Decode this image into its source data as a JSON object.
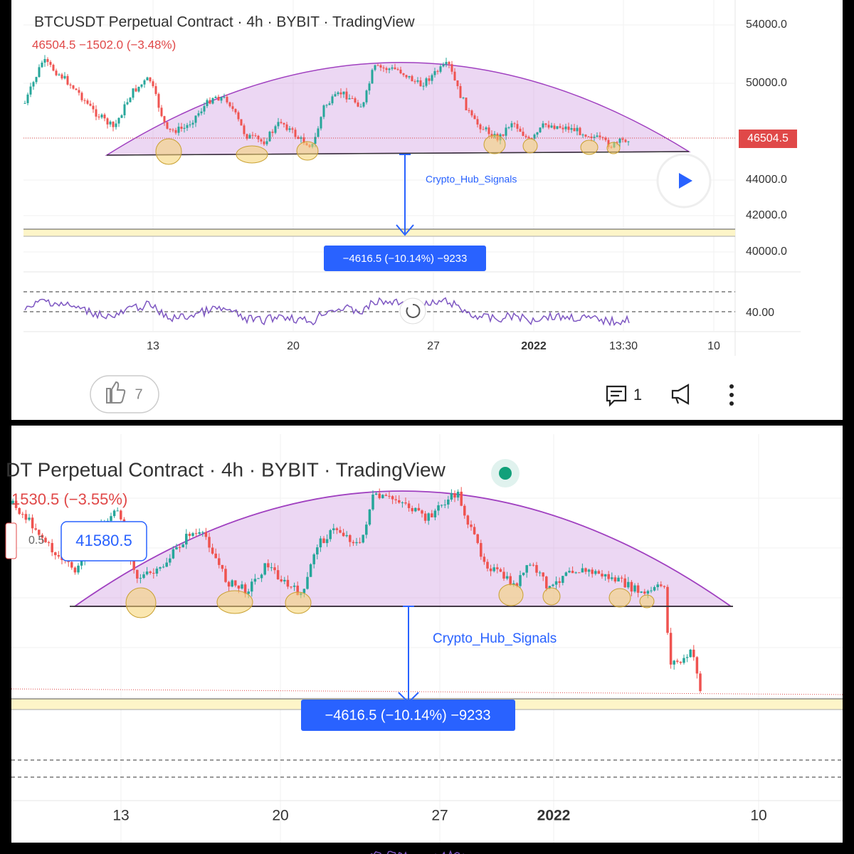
{
  "top": {
    "title": "BTCUSDT Perpetual Contract · 4h · BYBIT · TradingView",
    "price_line": "46504.5  −1502.0 (−3.48%)",
    "price_axis": [
      "54000.0",
      "50000.0",
      "44000.0",
      "42000.0",
      "40000.0"
    ],
    "last_price": "46504.5",
    "rsi_axis": "40.00",
    "time_axis": [
      "13",
      "20",
      "27",
      "2022",
      "13:30",
      "10"
    ],
    "watermark": "Crypto_Hub_Signals",
    "measure": "−4616.5 (−10.14%) −9233",
    "likes": "7",
    "comments": "1"
  },
  "bottom": {
    "title": "DT Perpetual Contract · 4h · BYBIT · TradingView",
    "price_line": "1530.5 (−3.55%)",
    "fib_label": "0.5",
    "crosshair_price": "41580.5",
    "watermark": "Crypto_Hub_Signals",
    "measure": "−4616.5 (−10.14%) −9233",
    "time_axis": [
      "13",
      "20",
      "27",
      "2022",
      "10"
    ]
  }
}
